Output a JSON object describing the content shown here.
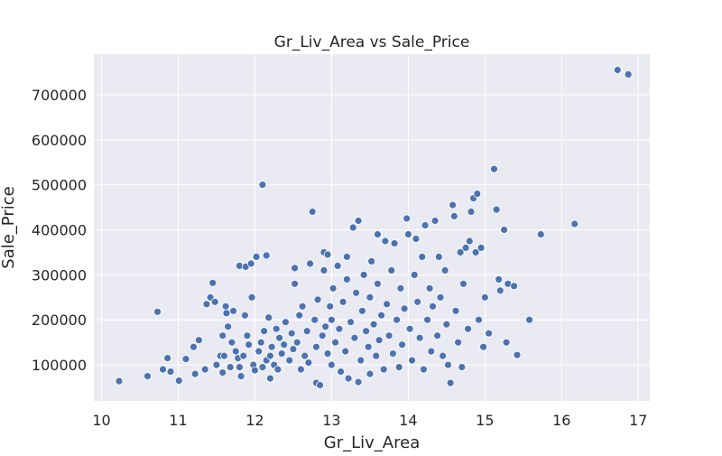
{
  "chart_data": {
    "type": "scatter",
    "title": "Gr_Liv_Area vs Sale_Price",
    "xlabel": "Gr_Liv_Area",
    "ylabel": "Sale_Price",
    "xlim": [
      9.9,
      17.15
    ],
    "ylim": [
      20000,
      790000
    ],
    "xticks": [
      "10",
      "11",
      "12",
      "13",
      "14",
      "15",
      "16",
      "17"
    ],
    "yticks": [
      "100000",
      "200000",
      "300000",
      "400000",
      "500000",
      "600000",
      "700000"
    ],
    "grid": true,
    "style": "seaborn-darkgrid",
    "colors": {
      "background": "#EAEAF2",
      "grid": "#FFFFFF",
      "point": "#4C72B0",
      "point_edge": "#FFFFFF",
      "text": "#262626"
    },
    "points": [
      [
        10.23,
        64000
      ],
      [
        10.6,
        75000
      ],
      [
        10.73,
        218000
      ],
      [
        10.8,
        90000
      ],
      [
        10.86,
        115000
      ],
      [
        10.9,
        85000
      ],
      [
        11.01,
        65000
      ],
      [
        11.1,
        113000
      ],
      [
        11.2,
        140000
      ],
      [
        11.22,
        80000
      ],
      [
        11.27,
        155000
      ],
      [
        11.35,
        90000
      ],
      [
        11.37,
        235000
      ],
      [
        11.42,
        250000
      ],
      [
        11.45,
        282000
      ],
      [
        11.48,
        240000
      ],
      [
        11.5,
        100000
      ],
      [
        11.55,
        120000
      ],
      [
        11.58,
        83000
      ],
      [
        11.58,
        165000
      ],
      [
        11.6,
        120000
      ],
      [
        11.62,
        230000
      ],
      [
        11.63,
        215000
      ],
      [
        11.65,
        185000
      ],
      [
        11.68,
        95000
      ],
      [
        11.7,
        150000
      ],
      [
        11.72,
        220000
      ],
      [
        11.75,
        130000
      ],
      [
        11.78,
        115000
      ],
      [
        11.8,
        95000
      ],
      [
        11.8,
        320000
      ],
      [
        11.82,
        75000
      ],
      [
        11.85,
        120000
      ],
      [
        11.87,
        210000
      ],
      [
        11.88,
        318000
      ],
      [
        11.9,
        165000
      ],
      [
        11.92,
        145000
      ],
      [
        11.95,
        325000
      ],
      [
        11.96,
        250000
      ],
      [
        11.98,
        100000
      ],
      [
        12.0,
        88000
      ],
      [
        12.02,
        340000
      ],
      [
        12.05,
        130000
      ],
      [
        12.08,
        150000
      ],
      [
        12.1,
        95000
      ],
      [
        12.12,
        175000
      ],
      [
        12.15,
        110000
      ],
      [
        12.18,
        205000
      ],
      [
        12.2,
        120000
      ],
      [
        12.2,
        70000
      ],
      [
        12.22,
        140000
      ],
      [
        12.25,
        100000
      ],
      [
        12.28,
        180000
      ],
      [
        12.3,
        90000
      ],
      [
        12.32,
        160000
      ],
      [
        12.35,
        125000
      ],
      [
        12.38,
        145000
      ],
      [
        12.4,
        195000
      ],
      [
        12.1,
        500000
      ],
      [
        12.15,
        343000
      ],
      [
        12.45,
        110000
      ],
      [
        12.48,
        170000
      ],
      [
        12.5,
        135000
      ],
      [
        12.52,
        280000
      ],
      [
        12.52,
        315000
      ],
      [
        12.55,
        150000
      ],
      [
        12.58,
        210000
      ],
      [
        12.6,
        90000
      ],
      [
        12.62,
        230000
      ],
      [
        12.65,
        120000
      ],
      [
        12.68,
        175000
      ],
      [
        12.7,
        105000
      ],
      [
        12.72,
        325000
      ],
      [
        12.75,
        440000
      ],
      [
        12.78,
        200000
      ],
      [
        12.8,
        60000
      ],
      [
        12.8,
        140000
      ],
      [
        12.82,
        245000
      ],
      [
        12.85,
        55000
      ],
      [
        12.88,
        165000
      ],
      [
        12.9,
        350000
      ],
      [
        12.9,
        310000
      ],
      [
        12.92,
        185000
      ],
      [
        12.95,
        125000
      ],
      [
        12.95,
        345000
      ],
      [
        12.98,
        230000
      ],
      [
        13.0,
        100000
      ],
      [
        13.0,
        200000
      ],
      [
        13.02,
        270000
      ],
      [
        13.05,
        150000
      ],
      [
        13.08,
        320000
      ],
      [
        13.1,
        180000
      ],
      [
        13.12,
        85000
      ],
      [
        13.15,
        240000
      ],
      [
        13.18,
        130000
      ],
      [
        13.2,
        290000
      ],
      [
        13.2,
        340000
      ],
      [
        13.22,
        70000
      ],
      [
        13.25,
        195000
      ],
      [
        13.28,
        405000
      ],
      [
        13.3,
        160000
      ],
      [
        13.32,
        260000
      ],
      [
        13.35,
        420000
      ],
      [
        13.35,
        62000
      ],
      [
        13.38,
        110000
      ],
      [
        13.4,
        220000
      ],
      [
        13.42,
        300000
      ],
      [
        13.45,
        175000
      ],
      [
        13.48,
        140000
      ],
      [
        13.5,
        250000
      ],
      [
        13.5,
        80000
      ],
      [
        13.52,
        330000
      ],
      [
        13.55,
        190000
      ],
      [
        13.58,
        120000
      ],
      [
        13.6,
        390000
      ],
      [
        13.6,
        280000
      ],
      [
        13.62,
        155000
      ],
      [
        13.65,
        210000
      ],
      [
        13.68,
        90000
      ],
      [
        13.7,
        375000
      ],
      [
        13.72,
        235000
      ],
      [
        13.75,
        165000
      ],
      [
        13.78,
        310000
      ],
      [
        13.8,
        125000
      ],
      [
        13.82,
        370000
      ],
      [
        13.85,
        200000
      ],
      [
        13.88,
        95000
      ],
      [
        13.9,
        270000
      ],
      [
        13.92,
        145000
      ],
      [
        13.95,
        225000
      ],
      [
        13.98,
        425000
      ],
      [
        14.0,
        390000
      ],
      [
        14.02,
        180000
      ],
      [
        14.05,
        110000
      ],
      [
        14.08,
        300000
      ],
      [
        14.1,
        380000
      ],
      [
        14.12,
        240000
      ],
      [
        14.15,
        160000
      ],
      [
        14.18,
        340000
      ],
      [
        14.2,
        90000
      ],
      [
        14.22,
        410000
      ],
      [
        14.25,
        200000
      ],
      [
        14.28,
        270000
      ],
      [
        14.3,
        130000
      ],
      [
        14.32,
        230000
      ],
      [
        14.35,
        420000
      ],
      [
        14.38,
        165000
      ],
      [
        14.4,
        340000
      ],
      [
        14.42,
        250000
      ],
      [
        14.45,
        120000
      ],
      [
        14.48,
        310000
      ],
      [
        14.5,
        190000
      ],
      [
        14.52,
        100000
      ],
      [
        14.55,
        60000
      ],
      [
        14.58,
        455000
      ],
      [
        14.6,
        430000
      ],
      [
        14.62,
        220000
      ],
      [
        14.65,
        150000
      ],
      [
        14.68,
        350000
      ],
      [
        14.7,
        95000
      ],
      [
        14.72,
        280000
      ],
      [
        14.75,
        360000
      ],
      [
        14.78,
        180000
      ],
      [
        14.8,
        375000
      ],
      [
        14.82,
        440000
      ],
      [
        14.85,
        470000
      ],
      [
        14.88,
        350000
      ],
      [
        14.9,
        480000
      ],
      [
        14.92,
        200000
      ],
      [
        14.95,
        360000
      ],
      [
        14.98,
        140000
      ],
      [
        15.0,
        250000
      ],
      [
        15.05,
        170000
      ],
      [
        15.12,
        535000
      ],
      [
        15.15,
        445000
      ],
      [
        15.18,
        290000
      ],
      [
        15.2,
        265000
      ],
      [
        15.25,
        400000
      ],
      [
        15.28,
        150000
      ],
      [
        15.3,
        280000
      ],
      [
        15.38,
        275000
      ],
      [
        15.42,
        122000
      ],
      [
        15.58,
        200000
      ],
      [
        15.73,
        390000
      ],
      [
        16.17,
        413000
      ],
      [
        16.73,
        755000
      ],
      [
        16.87,
        745000
      ]
    ]
  }
}
